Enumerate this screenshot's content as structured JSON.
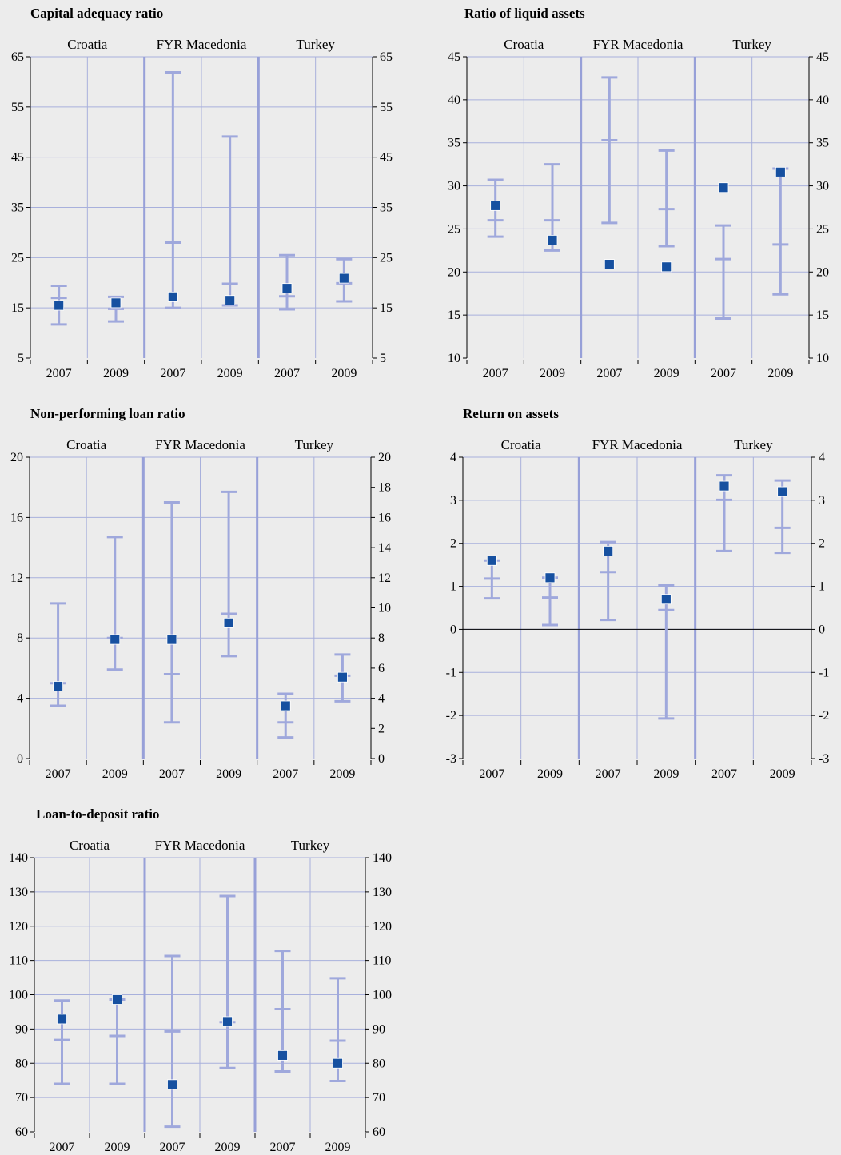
{
  "groups": [
    "Croatia",
    "FYR Macedonia",
    "Turkey"
  ],
  "years": [
    "2007",
    "2009",
    "2007",
    "2009",
    "2007",
    "2009"
  ],
  "colors": {
    "marker": "#1650a0",
    "range": "#9fa8dc",
    "grid": "#a8b0dc",
    "divider": "#97a0d8",
    "background": "#ececec",
    "zero_line": "#000000"
  },
  "chart_data": [
    {
      "type": "scatter",
      "title": "Capital adequacy ratio",
      "ylim": [
        5,
        65
      ],
      "yticks_left": [
        5,
        15,
        25,
        35,
        45,
        55,
        65
      ],
      "yticks_right": [
        5,
        15,
        25,
        35,
        45,
        55,
        65
      ],
      "points": [
        {
          "group": "Croatia",
          "year": "2007",
          "value": 15.5,
          "min": 11.7,
          "median": 17.0,
          "max": 19.4
        },
        {
          "group": "Croatia",
          "year": "2009",
          "value": 16.0,
          "min": 12.3,
          "median": 14.8,
          "max": 17.2
        },
        {
          "group": "FYR Macedonia",
          "year": "2007",
          "value": 17.2,
          "min": 15.0,
          "median": 28.0,
          "max": 61.9
        },
        {
          "group": "FYR Macedonia",
          "year": "2009",
          "value": 16.5,
          "min": 15.5,
          "median": 19.8,
          "max": 49.1
        },
        {
          "group": "Turkey",
          "year": "2007",
          "value": 18.9,
          "min": 14.7,
          "median": 17.3,
          "max": 25.5
        },
        {
          "group": "Turkey",
          "year": "2009",
          "value": 20.9,
          "min": 16.3,
          "median": 19.9,
          "max": 24.7
        }
      ]
    },
    {
      "type": "scatter",
      "title": "Ratio of liquid assets",
      "ylim": [
        10,
        45
      ],
      "yticks_left": [
        10,
        15,
        20,
        25,
        30,
        35,
        40,
        45
      ],
      "yticks_right": [
        10,
        15,
        20,
        25,
        30,
        35,
        40,
        45
      ],
      "points": [
        {
          "group": "Croatia",
          "year": "2007",
          "value": 27.7,
          "min": 24.1,
          "median": 26.0,
          "max": 30.7
        },
        {
          "group": "Croatia",
          "year": "2009",
          "value": 23.7,
          "min": 22.5,
          "median": 26.0,
          "max": 32.5
        },
        {
          "group": "FYR Macedonia",
          "year": "2007",
          "value": 20.9,
          "min": 25.7,
          "median": 35.3,
          "max": 42.6
        },
        {
          "group": "FYR Macedonia",
          "year": "2009",
          "value": 20.6,
          "min": 23.0,
          "median": 27.3,
          "max": 34.1
        },
        {
          "group": "Turkey",
          "year": "2007",
          "value": 29.8,
          "min": 14.6,
          "median": 21.5,
          "max": 25.4
        },
        {
          "group": "Turkey",
          "year": "2009",
          "value": 31.6,
          "min": 17.4,
          "median": 23.2,
          "max": 32.0
        }
      ]
    },
    {
      "type": "scatter",
      "title": "Non-performing loan ratio",
      "ylim": [
        0,
        20
      ],
      "yticks_left": [
        0,
        4,
        8,
        12,
        16,
        20
      ],
      "yticks_right": [
        0,
        2,
        4,
        6,
        8,
        10,
        12,
        14,
        16,
        18,
        20
      ],
      "points": [
        {
          "group": "Croatia",
          "year": "2007",
          "value": 4.8,
          "min": 3.5,
          "median": 5.0,
          "max": 10.3
        },
        {
          "group": "Croatia",
          "year": "2009",
          "value": 7.9,
          "min": 5.9,
          "median": 8.0,
          "max": 14.7
        },
        {
          "group": "FYR Macedonia",
          "year": "2007",
          "value": 7.9,
          "min": 2.4,
          "median": 5.6,
          "max": 17.0
        },
        {
          "group": "FYR Macedonia",
          "year": "2009",
          "value": 9.0,
          "min": 6.8,
          "median": 9.6,
          "max": 17.7
        },
        {
          "group": "Turkey",
          "year": "2007",
          "value": 3.5,
          "min": 1.4,
          "median": 2.4,
          "max": 4.3
        },
        {
          "group": "Turkey",
          "year": "2009",
          "value": 5.4,
          "min": 3.8,
          "median": 5.5,
          "max": 6.9
        }
      ]
    },
    {
      "type": "scatter",
      "title": "Return on assets",
      "ylim": [
        -3,
        4
      ],
      "yticks_left": [
        -3,
        -2,
        -1,
        0,
        1,
        2,
        3,
        4
      ],
      "yticks_right": [
        -3,
        -2,
        -1,
        0,
        1,
        2,
        3,
        4
      ],
      "zero_line": true,
      "points": [
        {
          "group": "Croatia",
          "year": "2007",
          "value": 1.6,
          "min": 0.72,
          "median": 1.18,
          "max": 1.6
        },
        {
          "group": "Croatia",
          "year": "2009",
          "value": 1.2,
          "min": 0.1,
          "median": 0.74,
          "max": 1.2
        },
        {
          "group": "FYR Macedonia",
          "year": "2007",
          "value": 1.82,
          "min": 0.22,
          "median": 1.33,
          "max": 2.03
        },
        {
          "group": "FYR Macedonia",
          "year": "2009",
          "value": 0.7,
          "min": -2.07,
          "median": 0.45,
          "max": 1.02
        },
        {
          "group": "Turkey",
          "year": "2007",
          "value": 3.33,
          "min": 1.82,
          "median": 3.01,
          "max": 3.58
        },
        {
          "group": "Turkey",
          "year": "2009",
          "value": 3.2,
          "min": 1.78,
          "median": 2.36,
          "max": 3.46
        }
      ]
    },
    {
      "type": "scatter",
      "title": "Loan-to-deposit ratio",
      "ylim": [
        60,
        140
      ],
      "yticks_left": [
        60,
        70,
        80,
        90,
        100,
        110,
        120,
        130,
        140
      ],
      "yticks_right": [
        60,
        70,
        80,
        90,
        100,
        110,
        120,
        130,
        140
      ],
      "points": [
        {
          "group": "Croatia",
          "year": "2007",
          "value": 92.9,
          "min": 74.0,
          "median": 86.8,
          "max": 98.3
        },
        {
          "group": "Croatia",
          "year": "2009",
          "value": 98.6,
          "min": 74.0,
          "median": 88.0,
          "max": 98.6
        },
        {
          "group": "FYR Macedonia",
          "year": "2007",
          "value": 73.8,
          "min": 61.5,
          "median": 89.3,
          "max": 111.3
        },
        {
          "group": "FYR Macedonia",
          "year": "2009",
          "value": 92.2,
          "min": 78.6,
          "median": 92.0,
          "max": 128.8
        },
        {
          "group": "Turkey",
          "year": "2007",
          "value": 82.3,
          "min": 77.6,
          "median": 95.8,
          "max": 112.8
        },
        {
          "group": "Turkey",
          "year": "2009",
          "value": 80.0,
          "min": 74.8,
          "median": 86.6,
          "max": 104.8
        }
      ]
    }
  ]
}
